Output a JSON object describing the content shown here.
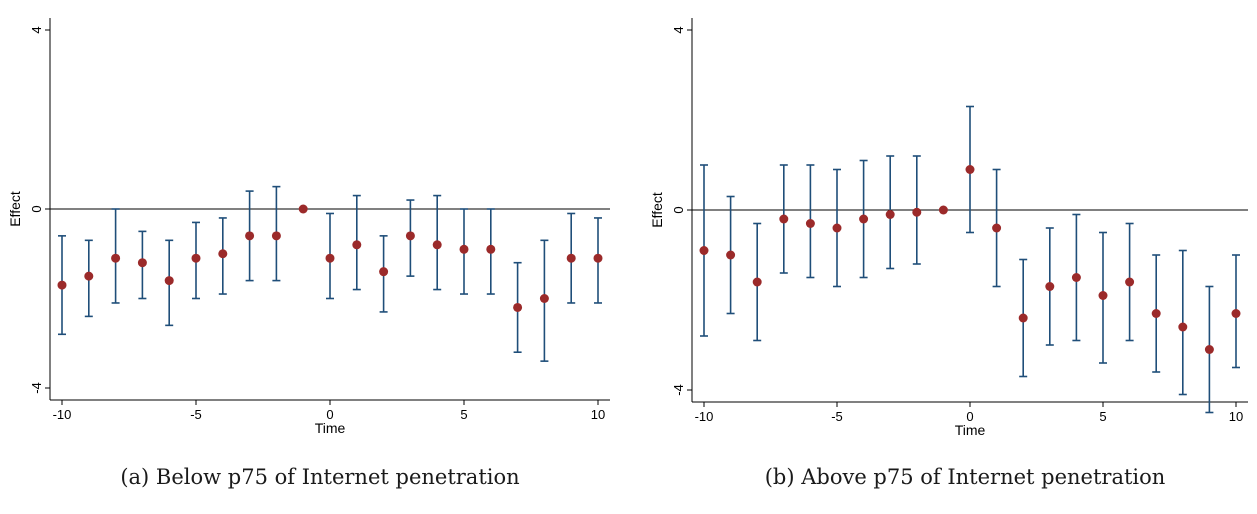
{
  "colors": {
    "ci": "#1f4e79",
    "point": "#9b2a2a",
    "axis": "#000000"
  },
  "chart_data": [
    {
      "type": "scatter",
      "caption": "(a) Below p75 of Internet penetration",
      "xlabel": "Time",
      "ylabel": "Effect",
      "xlim": [
        -10,
        10
      ],
      "ylim": [
        -4,
        4
      ],
      "xticks": [
        -10,
        -5,
        0,
        5,
        10
      ],
      "yticks": [
        -4,
        0,
        4
      ],
      "reference_line": 0,
      "x": [
        -10,
        -9,
        -8,
        -7,
        -6,
        -5,
        -4,
        -3,
        -2,
        -1,
        0,
        1,
        2,
        3,
        4,
        5,
        6,
        7,
        8,
        9,
        10
      ],
      "estimate": [
        -1.7,
        -1.5,
        -1.1,
        -1.2,
        -1.6,
        -1.1,
        -1.0,
        -0.6,
        -0.6,
        0.0,
        -1.1,
        -0.8,
        -1.4,
        -0.6,
        -0.8,
        -0.9,
        -0.9,
        -2.2,
        -2.0,
        -1.1,
        -1.1
      ],
      "ci_low": [
        -2.8,
        -2.4,
        -2.1,
        -2.0,
        -2.6,
        -2.0,
        -1.9,
        -1.6,
        -1.6,
        0.0,
        -2.0,
        -1.8,
        -2.3,
        -1.5,
        -1.8,
        -1.9,
        -1.9,
        -3.2,
        -3.4,
        -2.1,
        -2.1
      ],
      "ci_high": [
        -0.6,
        -0.7,
        0.0,
        -0.5,
        -0.7,
        -0.3,
        -0.2,
        0.4,
        0.5,
        0.0,
        -0.1,
        0.3,
        -0.6,
        0.2,
        0.3,
        0.0,
        0.0,
        -1.2,
        -0.7,
        -0.1,
        -0.2
      ]
    },
    {
      "type": "scatter",
      "caption": "(b) Above p75 of Internet penetration",
      "xlabel": "Time",
      "ylabel": "Effect",
      "xlim": [
        -10,
        10
      ],
      "ylim": [
        -4,
        4
      ],
      "xticks": [
        -10,
        -5,
        0,
        5,
        10
      ],
      "yticks": [
        -4,
        0,
        4
      ],
      "reference_line": 0,
      "x": [
        -10,
        -9,
        -8,
        -7,
        -6,
        -5,
        -4,
        -3,
        -2,
        -1,
        0,
        1,
        2,
        3,
        4,
        5,
        6,
        7,
        8,
        9,
        10
      ],
      "estimate": [
        -0.9,
        -1.0,
        -1.6,
        -0.2,
        -0.3,
        -0.4,
        -0.2,
        -0.1,
        -0.05,
        0.0,
        0.9,
        -0.4,
        -2.4,
        -1.7,
        -1.5,
        -1.9,
        -1.6,
        -2.3,
        -2.6,
        -3.1,
        -2.3
      ],
      "ci_low": [
        -2.8,
        -2.3,
        -2.9,
        -1.4,
        -1.5,
        -1.7,
        -1.5,
        -1.3,
        -1.2,
        0.0,
        -0.5,
        -1.7,
        -3.7,
        -3.0,
        -2.9,
        -3.4,
        -2.9,
        -3.6,
        -4.1,
        -4.5,
        -3.5
      ],
      "ci_high": [
        1.0,
        0.3,
        -0.3,
        1.0,
        1.0,
        0.9,
        1.1,
        1.2,
        1.2,
        0.0,
        2.3,
        0.9,
        -1.1,
        -0.4,
        -0.1,
        -0.5,
        -0.3,
        -1.0,
        -0.9,
        -1.7,
        -1.0
      ]
    }
  ]
}
